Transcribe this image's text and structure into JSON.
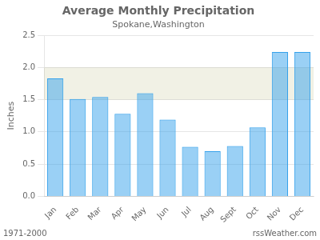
{
  "chart_data": {
    "type": "bar",
    "title": "Average Monthly Precipitation",
    "subtitle": "Spokane,Washington",
    "ylabel": "Inches",
    "categories": [
      "Jan",
      "Feb",
      "Mar",
      "Apr",
      "May",
      "Jun",
      "Jul",
      "Aug",
      "Sept",
      "Oct",
      "Nov",
      "Dec"
    ],
    "values": [
      1.83,
      1.51,
      1.54,
      1.28,
      1.6,
      1.19,
      0.77,
      0.7,
      0.78,
      1.07,
      2.24,
      2.24
    ],
    "ylim": [
      0,
      2.5
    ],
    "yticks": [
      {
        "value": 0.0,
        "label": "0.0"
      },
      0.5,
      {
        "value": 1.0,
        "label": "1.0"
      },
      1.5,
      {
        "value": 2.0,
        "label": "2.0"
      },
      2.5
    ],
    "shade": {
      "y1": 1.5,
      "y2": 2.0
    },
    "footer_left": "1971-2000",
    "footer_right": "rssWeather.com",
    "grid": true
  }
}
